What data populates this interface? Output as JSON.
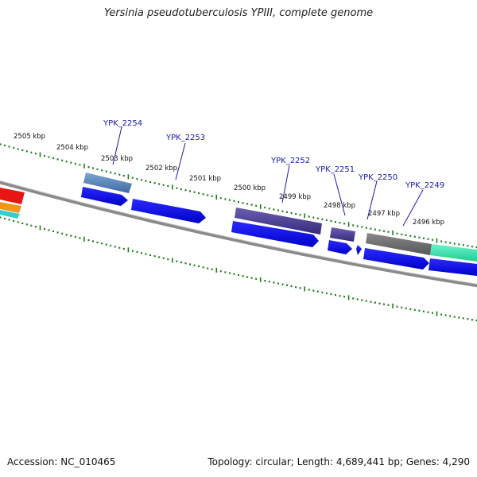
{
  "title": "Yersinia pseudotuberculosis YPIII, complete genome",
  "footer": {
    "accession": "Accession: NC_010465",
    "summary": "Topology: circular; Length: 4,689,441 bp; Genes: 4,290"
  },
  "kbp_labels": [
    "2505 kbp",
    "2504 kbp",
    "2503 kbp",
    "2502 kbp",
    "2501 kbp",
    "2500 kbp",
    "2499 kbp",
    "2498 kbp",
    "2497 kbp",
    "2496 kbp"
  ],
  "gene_labels": [
    "YPK_2254",
    "YPK_2253",
    "YPK_2252",
    "YPK_2251",
    "YPK_2250",
    "YPK_2249"
  ],
  "colors": {
    "backbone": "#8a8a8a",
    "tick": "#1a7a1a",
    "cds": "#1010ee",
    "label": "#1a1aa8"
  }
}
